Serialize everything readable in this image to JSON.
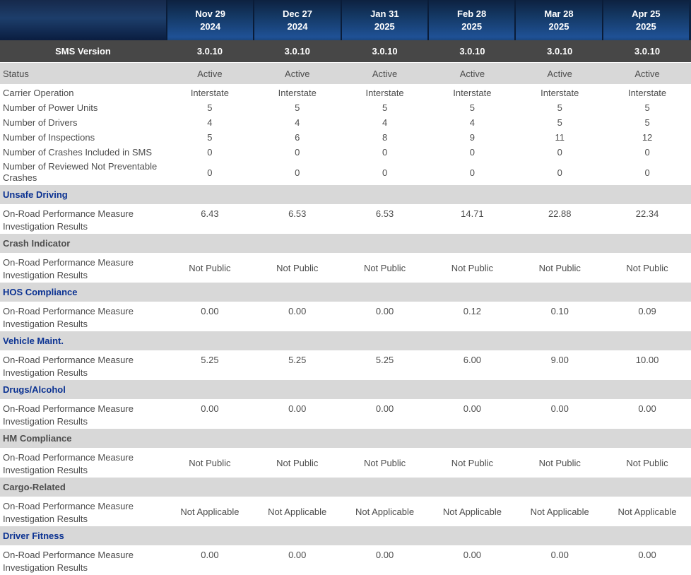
{
  "columns": [
    {
      "line1": "Nov 29",
      "line2": "2024"
    },
    {
      "line1": "Dec 27",
      "line2": "2024"
    },
    {
      "line1": "Jan 31",
      "line2": "2025"
    },
    {
      "line1": "Feb 28",
      "line2": "2025"
    },
    {
      "line1": "Mar 28",
      "line2": "2025"
    },
    {
      "line1": "Apr 25",
      "line2": "2025"
    }
  ],
  "sms_version": {
    "label": "SMS Version",
    "values": [
      "3.0.10",
      "3.0.10",
      "3.0.10",
      "3.0.10",
      "3.0.10",
      "3.0.10"
    ]
  },
  "status": {
    "label": "Status",
    "values": [
      "Active",
      "Active",
      "Active",
      "Active",
      "Active",
      "Active"
    ]
  },
  "carrier_rows": [
    {
      "label": "Carrier Operation",
      "values": [
        "Interstate",
        "Interstate",
        "Interstate",
        "Interstate",
        "Interstate",
        "Interstate"
      ]
    },
    {
      "label": "Number of Power Units",
      "values": [
        "5",
        "5",
        "5",
        "5",
        "5",
        "5"
      ]
    },
    {
      "label": "Number of Drivers",
      "values": [
        "4",
        "4",
        "4",
        "4",
        "5",
        "5"
      ]
    },
    {
      "label": "Number of Inspections",
      "values": [
        "5",
        "6",
        "8",
        "9",
        "11",
        "12"
      ]
    },
    {
      "label": "Number of Crashes Included in SMS",
      "values": [
        "0",
        "0",
        "0",
        "0",
        "0",
        "0"
      ]
    },
    {
      "label": "Number of Reviewed Not Preventable Crashes",
      "values": [
        "0",
        "0",
        "0",
        "0",
        "0",
        "0"
      ]
    }
  ],
  "measure_row": {
    "line1": "On-Road Performance Measure",
    "line2": "Investigation Results"
  },
  "basics": [
    {
      "name": "Unsafe Driving",
      "is_link": true,
      "values": [
        "6.43",
        "6.53",
        "6.53",
        "14.71",
        "22.88",
        "22.34"
      ]
    },
    {
      "name": "Crash Indicator",
      "is_link": false,
      "values": [
        "Not Public",
        "Not Public",
        "Not Public",
        "Not Public",
        "Not Public",
        "Not Public"
      ]
    },
    {
      "name": "HOS Compliance",
      "is_link": true,
      "values": [
        "0.00",
        "0.00",
        "0.00",
        "0.12",
        "0.10",
        "0.09"
      ]
    },
    {
      "name": "Vehicle Maint.",
      "is_link": true,
      "values": [
        "5.25",
        "5.25",
        "5.25",
        "6.00",
        "9.00",
        "10.00"
      ]
    },
    {
      "name": "Drugs/Alcohol",
      "is_link": true,
      "values": [
        "0.00",
        "0.00",
        "0.00",
        "0.00",
        "0.00",
        "0.00"
      ]
    },
    {
      "name": "HM Compliance",
      "is_link": false,
      "values": [
        "Not Public",
        "Not Public",
        "Not Public",
        "Not Public",
        "Not Public",
        "Not Public"
      ]
    },
    {
      "name": "Cargo-Related",
      "is_link": false,
      "values": [
        "Not Applicable",
        "Not Applicable",
        "Not Applicable",
        "Not Applicable",
        "Not Applicable",
        "Not Applicable"
      ]
    },
    {
      "name": "Driver Fitness",
      "is_link": true,
      "values": [
        "0.00",
        "0.00",
        "0.00",
        "0.00",
        "0.00",
        "0.00"
      ]
    }
  ],
  "colors": {
    "header_navy_dark": "#0a1d40",
    "header_navy_light": "#1f5195",
    "dark_gray_row": "#474747",
    "light_gray_band": "#d8d8d8",
    "body_text": "#4d4d4d",
    "basic_link_blue": "#0b3292"
  }
}
